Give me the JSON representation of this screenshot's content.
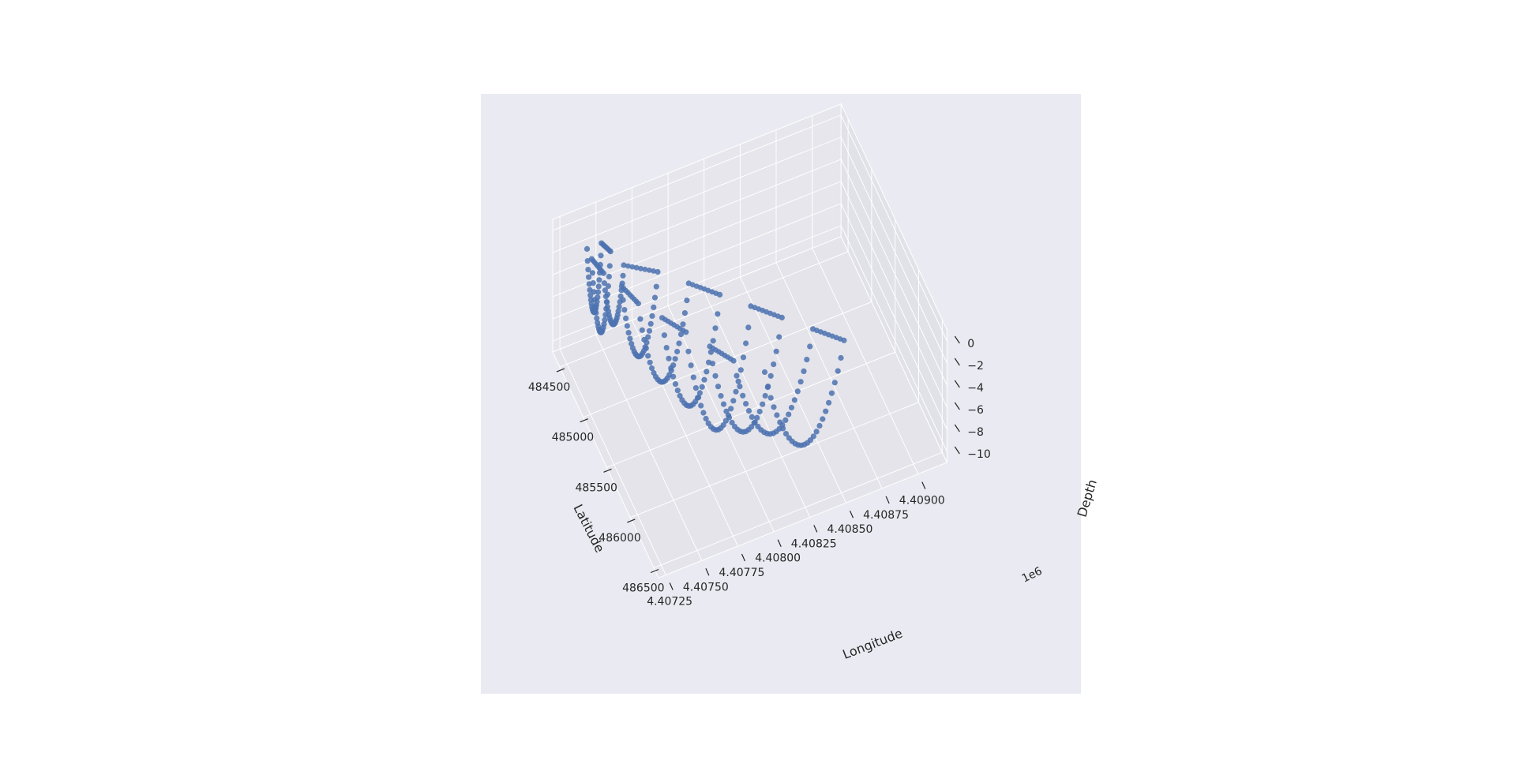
{
  "chart_data": {
    "type": "scatter",
    "projection": "3d",
    "title": "",
    "xlabel": "Latitude",
    "ylabel": "Longitude",
    "zlabel": "Depth",
    "x_ticks": [
      "484500",
      "485000",
      "485500",
      "486000",
      "486500"
    ],
    "y_ticks": [
      "4.40725",
      "4.40750",
      "4.40775",
      "4.40800",
      "4.40825",
      "4.40850",
      "4.40875",
      "4.40900"
    ],
    "y_offset_label": "1e6",
    "z_ticks": [
      "0",
      "−2",
      "−4",
      "−6",
      "−8",
      "−10"
    ],
    "xlim": [
      484350,
      486600
    ],
    "ylim": [
      4407200,
      4409200
    ],
    "zlim": [
      -11,
      1
    ],
    "grid": true,
    "legend": "none",
    "series": [
      {
        "color": "#4c72b0",
        "description": "survey transects: surface points ~0 m, U-shaped dives to about -6 to -10 m",
        "transects": [
          {
            "lat": 484620,
            "lon_start": 4407350,
            "lon_end": 4407450,
            "depth_min": -6
          },
          {
            "lat": 484720,
            "lon_start": 4407350,
            "lon_end": 4407480,
            "depth_min": -7
          },
          {
            "lat": 484880,
            "lon_start": 4407380,
            "lon_end": 4407520,
            "depth_min": -5
          },
          {
            "lat": 485050,
            "lon_start": 4407450,
            "lon_end": 4407700,
            "depth_min": -7
          },
          {
            "lat": 485250,
            "lon_start": 4407500,
            "lon_end": 4407850,
            "depth_min": -8
          },
          {
            "lat": 485450,
            "lon_start": 4407600,
            "lon_end": 4408000,
            "depth_min": -9
          },
          {
            "lat": 485650,
            "lon_start": 4407700,
            "lon_end": 4408150,
            "depth_min": -10
          },
          {
            "lat": 485850,
            "lon_start": 4407800,
            "lon_end": 4408300,
            "depth_min": -9
          },
          {
            "lat": 486050,
            "lon_start": 4407900,
            "lon_end": 4408450,
            "depth_min": -8
          },
          {
            "lat": 486250,
            "lon_start": 4408050,
            "lon_end": 4408600,
            "depth_min": -8
          }
        ]
      }
    ]
  }
}
